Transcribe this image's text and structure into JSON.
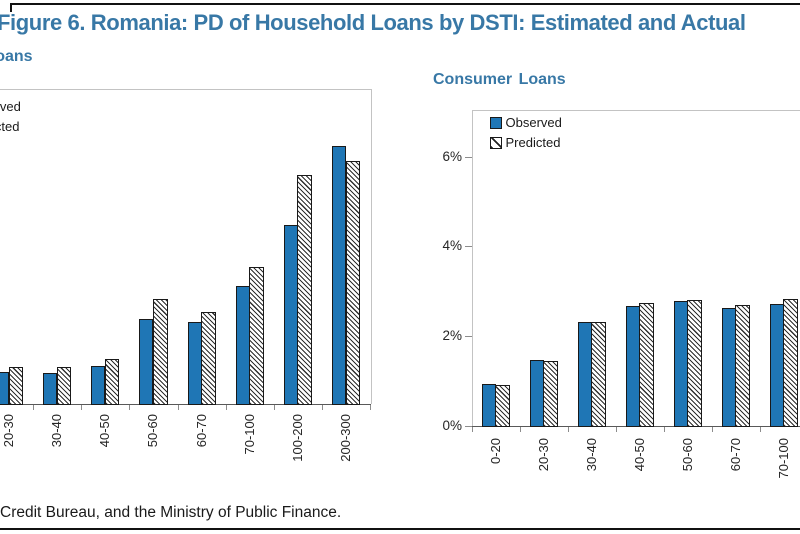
{
  "figure": {
    "title": "Figure 6. Romania: PD of Household Loans by DSTI: Estimated and Actual",
    "source_note": "Credit Bureau, and the Ministry of Public Finance.",
    "colors": {
      "title_blue": "#3878A6",
      "observed_fill": "#1F76B5",
      "bar_outline": "#191919"
    }
  },
  "legend": {
    "observed": "Observed",
    "predicted": "Predicted"
  },
  "chart_data": [
    {
      "type": "bar",
      "id": "mortgage-loans",
      "title": "Mortgage Loans",
      "xlabel": "",
      "ylabel": "",
      "categories": [
        "20-30",
        "30-40",
        "40-50",
        "50-60",
        "60-70",
        "70-100",
        "100-200",
        "200-300"
      ],
      "series": [
        {
          "name": "Observed",
          "values": [
            0.73,
            0.71,
            0.87,
            1.92,
            1.85,
            2.65,
            4.01,
            5.77
          ]
        },
        {
          "name": "Predicted",
          "values": [
            0.85,
            0.85,
            1.02,
            2.36,
            2.07,
            3.07,
            5.12,
            5.43
          ]
        }
      ],
      "value_unit": "percent",
      "ylim": [
        0,
        7
      ],
      "yticks": [],
      "grid": false,
      "legend_position": "top-left-inside"
    },
    {
      "type": "bar",
      "id": "consumer-loans",
      "title": "Consumer Loans",
      "xlabel": "",
      "ylabel": "",
      "categories": [
        "0-20",
        "20-30",
        "30-40",
        "40-50",
        "50-60",
        "60-70",
        "70-100"
      ],
      "series": [
        {
          "name": "Observed",
          "values": [
            0.96,
            1.49,
            2.34,
            2.69,
            2.81,
            2.66,
            2.75
          ]
        },
        {
          "name": "Predicted",
          "values": [
            0.94,
            1.46,
            2.34,
            2.77,
            2.82,
            2.71,
            2.86
          ]
        }
      ],
      "value_unit": "percent",
      "ylim": [
        0,
        7
      ],
      "yticks": [
        "0%",
        "2%",
        "4%",
        "6%"
      ],
      "ytick_values": [
        0,
        2,
        4,
        6
      ],
      "grid": false,
      "legend_position": "top-left-inside"
    }
  ]
}
